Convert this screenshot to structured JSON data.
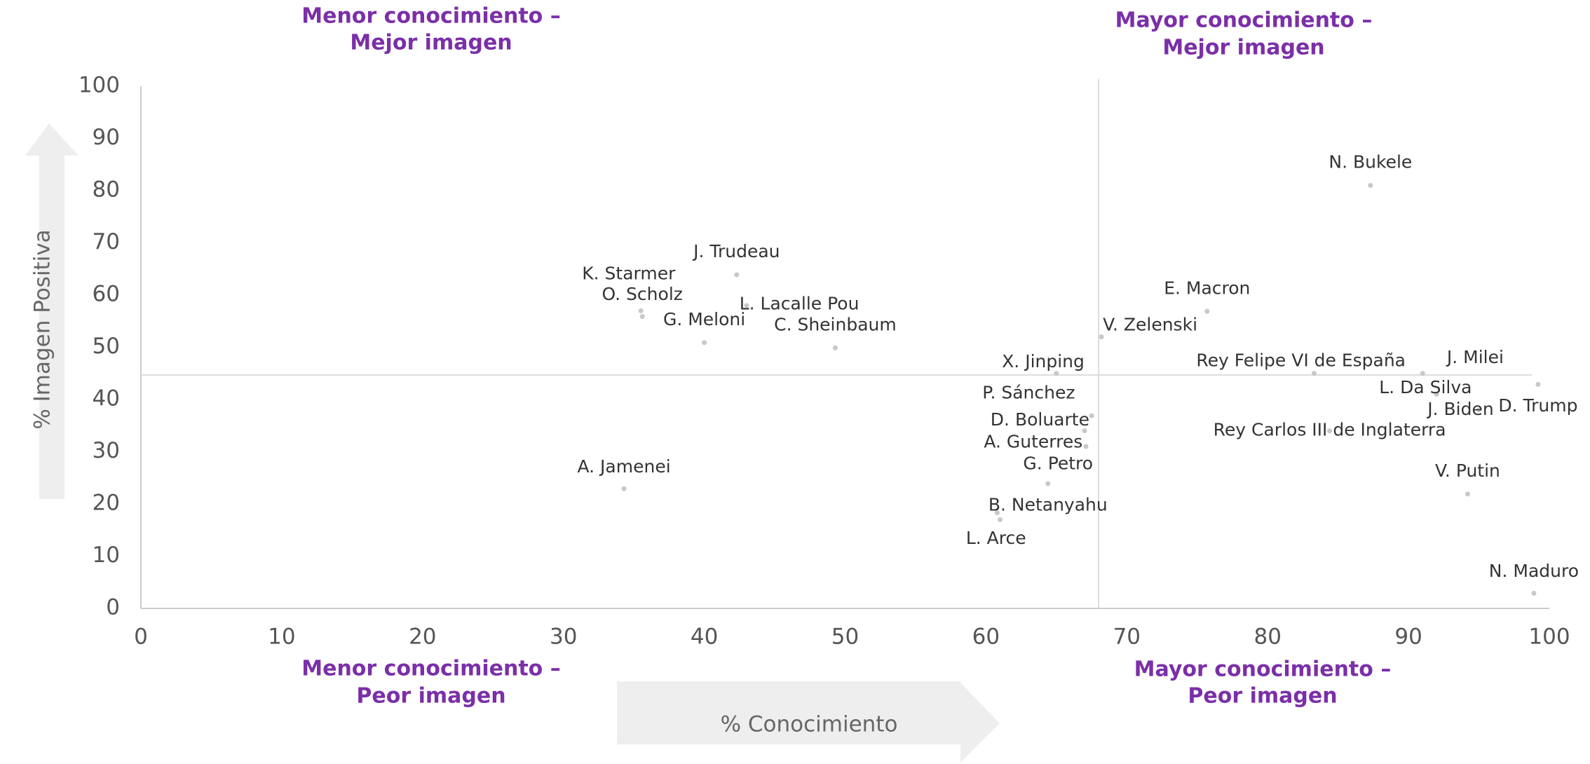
{
  "chart_data": {
    "type": "scatter",
    "x_label": "% Conocimiento",
    "y_label": "% Imagen Positiva",
    "quadrant_labels": {
      "top_left": [
        "Menor conocimiento –",
        "Mejor imagen"
      ],
      "top_right": [
        "Mayor conocimiento –",
        "Mejor imagen"
      ],
      "bottom_left": [
        "Menor conocimiento –",
        "Peor imagen"
      ],
      "bottom_right": [
        "Mayor conocimiento –",
        "Peor imagen"
      ]
    },
    "xlim": [
      0,
      100
    ],
    "ylim": [
      0,
      100
    ],
    "xticks": [
      0,
      10,
      20,
      30,
      40,
      50,
      60,
      70,
      80,
      90,
      100
    ],
    "yticks": [
      0,
      10,
      20,
      30,
      40,
      50,
      60,
      70,
      80,
      90,
      100
    ],
    "ref_x": 68,
    "ref_y": 44.7,
    "color": "#c8c8c8",
    "points": [
      {
        "label": "N. Bukele",
        "x": 87.3,
        "y": 81
      },
      {
        "label": "J. Trudeau",
        "x": 42.3,
        "y": 63.9
      },
      {
        "label": "K. Starmer",
        "x": 35.5,
        "y": 57
      },
      {
        "label": "O. Scholz",
        "x": 35.6,
        "y": 55.9
      },
      {
        "label": "G. Meloni",
        "x": 40,
        "y": 50.9
      },
      {
        "label": "L. Lacalle Pou",
        "x": 43,
        "y": 58
      },
      {
        "label": "C. Sheinbaum",
        "x": 49.3,
        "y": 49.9
      },
      {
        "label": "V. Zelenski",
        "x": 68.2,
        "y": 52
      },
      {
        "label": "E. Macron",
        "x": 75.7,
        "y": 56.9
      },
      {
        "label": "X. Jinping",
        "x": 65,
        "y": 45
      },
      {
        "label": "Rey Felipe VI de España",
        "x": 83.3,
        "y": 45
      },
      {
        "label": "J. Milei",
        "x": 91,
        "y": 45
      },
      {
        "label": "D. Trump",
        "x": 99.2,
        "y": 42.9
      },
      {
        "label": "L. Da Silva",
        "x": 92,
        "y": 41
      },
      {
        "label": "J. Biden",
        "x": 95,
        "y": 38
      },
      {
        "label": "P. Sánchez",
        "x": 67.5,
        "y": 36.9
      },
      {
        "label": "D. Boluarte",
        "x": 67,
        "y": 34
      },
      {
        "label": "A. Guterres",
        "x": 67.1,
        "y": 31
      },
      {
        "label": "Rey Carlos III de Inglaterra",
        "x": 84.4,
        "y": 34
      },
      {
        "label": "G. Petro",
        "x": 64.4,
        "y": 23.9
      },
      {
        "label": "V. Putin",
        "x": 94.2,
        "y": 21.9
      },
      {
        "label": "A. Jamenei",
        "x": 34.3,
        "y": 22.9
      },
      {
        "label": "B. Netanyahu",
        "x": 60.8,
        "y": 18.3
      },
      {
        "label": "L. Arce",
        "x": 61,
        "y": 17
      },
      {
        "label": "N. Maduro",
        "x": 98.9,
        "y": 2.9
      }
    ]
  }
}
